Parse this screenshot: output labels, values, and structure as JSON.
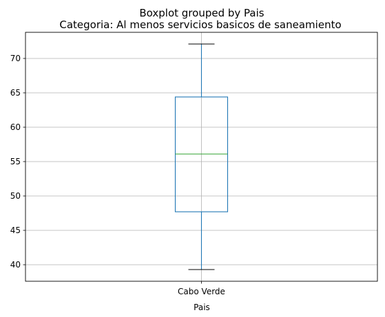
{
  "chart_data": {
    "type": "box",
    "suptitle": "Boxplot grouped by Pais",
    "title": "Categoria: Al menos servicios basicos de saneamiento",
    "xlabel": "Pais",
    "ylabel": "",
    "categories": [
      "Cabo Verde"
    ],
    "boxes": [
      {
        "category": "Cabo Verde",
        "whisker_low": 39.3,
        "q1": 47.7,
        "median": 56.1,
        "q3": 64.4,
        "whisker_high": 72.1
      }
    ],
    "ylim": [
      37.6,
      73.8
    ],
    "yticks": [
      40,
      45,
      50,
      55,
      60,
      65,
      70
    ],
    "grid": true,
    "colors": {
      "box": "#1f77b4",
      "whisker": "#1f77b4",
      "caps": "#000000",
      "median": "#2ca02c",
      "grid": "#b0b0b0",
      "axes": "#000000"
    }
  }
}
